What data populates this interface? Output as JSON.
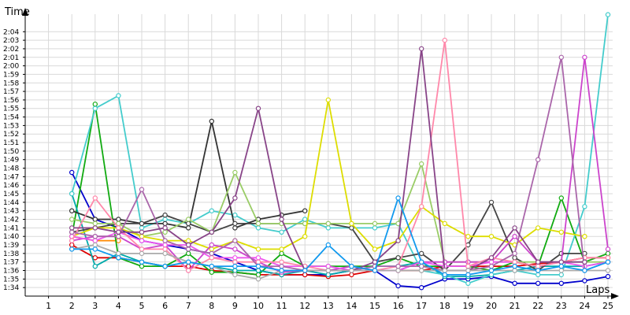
{
  "chart_data": {
    "type": "line",
    "xlabel": "Laps",
    "ylabel": "Time",
    "x_ticks": [
      "1",
      "2",
      "3",
      "4",
      "5",
      "6",
      "7",
      "8",
      "9",
      "10",
      "11",
      "12",
      "13",
      "14",
      "15",
      "16",
      "17",
      "18",
      "19",
      "20",
      "21",
      "22",
      "23",
      "24",
      "25"
    ],
    "y_ticks": [
      "1:34",
      "1:35",
      "1:36",
      "1:37",
      "1:38",
      "1:39",
      "1:40",
      "1:41",
      "1:42",
      "1:43",
      "1:44",
      "1:45",
      "1:46",
      "1:47",
      "1:48",
      "1:49",
      "1:50",
      "1:51",
      "1:52",
      "1:53",
      "1:54",
      "1:55",
      "1:56",
      "1:57",
      "1:58",
      "1:59",
      "2:00",
      "2:01",
      "2:02",
      "2:03",
      "2:04"
    ],
    "xlim": [
      0,
      25
    ],
    "ylim_seconds": [
      93,
      126
    ],
    "grid": {
      "horizontal": true,
      "vertical": true,
      "color": "#d9d9d9"
    },
    "series": [
      {
        "color": "#0000cc",
        "values": [
          null,
          107.5,
          102,
          101,
          99.5,
          99,
          98.5,
          98,
          97,
          96,
          95.5,
          95.5,
          95.5,
          96,
          96,
          94.2,
          94,
          95,
          95,
          95.3,
          94.5,
          94.5,
          94.5,
          94.8,
          95.3
        ]
      },
      {
        "color": "#dd0000",
        "values": [
          null,
          99,
          97.5,
          97.5,
          97,
          96.5,
          96.5,
          96,
          95.8,
          95.5,
          95.5,
          95.5,
          95.3,
          95.5,
          96,
          96,
          96,
          96.5,
          96.5,
          96.5,
          96.5,
          96.8,
          97,
          97.5,
          97.5
        ]
      },
      {
        "color": "#ff8800",
        "values": [
          null,
          100,
          99.5,
          99.5
        ]
      },
      {
        "color": "#11aa11",
        "values": [
          null,
          100,
          115.5,
          97.5,
          96.5,
          96.5,
          98,
          95.8,
          95.8,
          95.5,
          98,
          96.5,
          96.5,
          96.5,
          96.5,
          97.5,
          96.5,
          96.5,
          96.5,
          96,
          97,
          96.5,
          104.5,
          97,
          98
        ]
      },
      {
        "color": "#00aaaa",
        "values": [
          null,
          105,
          96.5,
          98,
          97,
          96.5,
          97,
          96.5,
          96,
          96,
          95.5,
          96,
          95.5,
          96,
          96.5,
          96.5,
          97,
          95.3,
          95.3,
          95.5,
          96,
          96.5,
          96.5,
          96.5,
          97
        ]
      },
      {
        "color": "#44cccc",
        "values": [
          null,
          105,
          115,
          116.5,
          101,
          102,
          101.5,
          103,
          102.5,
          101,
          100.5,
          102,
          101,
          101,
          101,
          101.5,
          96,
          95.5,
          94.5,
          95.5,
          96,
          95.5,
          95.5,
          103.5,
          126
        ]
      },
      {
        "color": "#333333",
        "values": [
          null,
          103,
          102,
          102,
          101.5,
          101.5,
          101,
          113.5,
          101,
          102,
          102.5,
          103
        ]
      },
      {
        "color": "#444444",
        "values": [
          null,
          100.5,
          101,
          101.5,
          101.5,
          102.5,
          101.5,
          100.5,
          101.5,
          101.5,
          101.5,
          101.5,
          101.5,
          101,
          97,
          97.5,
          98,
          96,
          99,
          104,
          97.5,
          96,
          98,
          98
        ]
      },
      {
        "color": "#99cc66",
        "values": [
          null,
          102,
          101.5,
          101.5,
          100,
          100.5,
          102,
          100.5,
          107.5,
          101.5,
          101.5,
          101.5,
          101.5,
          101.5,
          101.5,
          101.5,
          108.5,
          97,
          97,
          97,
          97,
          97,
          97,
          97,
          97
        ]
      },
      {
        "color": "#dddd00",
        "values": [
          null,
          100,
          101,
          101,
          100,
          99.5,
          99.5,
          98.5,
          99.5,
          98.5,
          98.5,
          100,
          116,
          101.5,
          98.5,
          99.5,
          103.5,
          101.5,
          100,
          100,
          99,
          101,
          100.5,
          100
        ]
      },
      {
        "color": "#cc44cc",
        "values": [
          null,
          99.5,
          100,
          100,
          98.5,
          99,
          96,
          99,
          98.5,
          97,
          95.8,
          96,
          96,
          96.5,
          96,
          96,
          97,
          97,
          97,
          97,
          100,
          97,
          97,
          121,
          98.5
        ]
      },
      {
        "color": "#ee55ee",
        "values": [
          null,
          100,
          99.5,
          100.5,
          99.5,
          99,
          99,
          97.5,
          97.5,
          97.5,
          96.5,
          96.5,
          96.5,
          96,
          96,
          96,
          97,
          96.5,
          96.5,
          97,
          97,
          96.5,
          97,
          96.5,
          97
        ]
      },
      {
        "color": "#ff88aa",
        "values": [
          null,
          99.5,
          104.5,
          101,
          98.5,
          98.5,
          96,
          97.5,
          97,
          97,
          97,
          96.5,
          96,
          96,
          96,
          96.5,
          103.5,
          123,
          96.5,
          97.5,
          97,
          96.5,
          97,
          97.5,
          97.5
        ]
      },
      {
        "color": "#aa66aa",
        "values": [
          null,
          100.5,
          100,
          100,
          105.5,
          99.5,
          98.5,
          98,
          99.5,
          96.5,
          96.5,
          96,
          96,
          96,
          96.5,
          96.5,
          96.5,
          96,
          96,
          96.5,
          98,
          109,
          121,
          96
        ]
      },
      {
        "color": "#884488",
        "values": [
          null,
          101,
          101,
          100.5,
          100.5,
          101,
          99,
          100.5,
          104.5,
          115,
          102,
          96,
          96,
          96,
          97,
          99.5,
          122,
          96,
          96,
          97.5,
          101,
          97,
          97,
          97
        ]
      },
      {
        "color": "#aaaaaa",
        "values": [
          null,
          98.5,
          99,
          98,
          98,
          98,
          97,
          96.5,
          95.5,
          95,
          96,
          96,
          96,
          96,
          96,
          96,
          96,
          96,
          96,
          96,
          96,
          96,
          96,
          96,
          96
        ]
      },
      {
        "color": "#1199ee",
        "values": [
          null,
          98.5,
          98.5,
          97.5,
          97,
          96.5,
          97,
          96.5,
          96.5,
          96.5,
          96,
          96,
          99,
          96.5,
          96,
          104.5,
          97,
          95.5,
          95.5,
          96,
          96.5,
          96,
          96.5,
          96,
          97
        ]
      }
    ]
  }
}
